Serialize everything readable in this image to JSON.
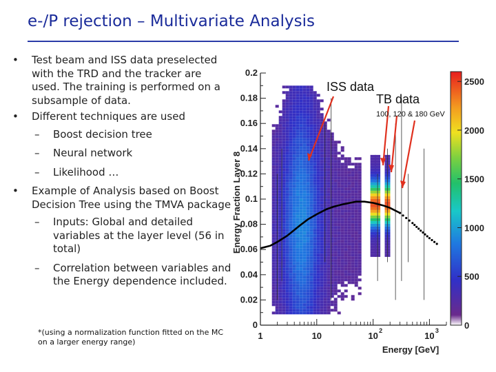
{
  "slide": {
    "title": "e-/P rejection – Multivariate Analysis",
    "bullets": [
      {
        "text": "Test beam and ISS data preselected with the TRD and the tracker are used. The training is performed on a subsample of data."
      },
      {
        "text": "Different techniques are used",
        "sub": [
          "Boost decision tree",
          "Neural network",
          "Likelihood …"
        ]
      },
      {
        "text": "Example of Analysis based on Boost Decision Tree using the TMVA package",
        "sub": [
          "Inputs: Global and detailed variables at the layer level  (56 in total)",
          " Correlation between variables and the Energy dependence included."
        ]
      }
    ],
    "footnote": "*(using a normalization function fitted on the MC on a larger energy range)"
  },
  "chart_data": {
    "type": "heatmap",
    "xlabel": "Energy [GeV]",
    "ylabel": "Energy Fraction Layer 8",
    "x_scale": "log",
    "xlim": [
      1,
      2000
    ],
    "ylim": [
      0,
      0.2
    ],
    "x_ticks": [
      {
        "label": "1",
        "value": 1
      },
      {
        "label": "10",
        "value": 10
      },
      {
        "label": "10",
        "sup": "2",
        "value": 100
      },
      {
        "label": "10",
        "sup": "3",
        "value": 1000
      }
    ],
    "y_ticks": [
      "0",
      "0.02",
      "0.04",
      "0.06",
      "0.08",
      "0.1",
      "0.12",
      "0.14",
      "0.16",
      "0.18",
      "0.2"
    ],
    "colorbar": {
      "min": 0,
      "max": 2600,
      "ticks": [
        "500",
        "1000",
        "1500",
        "2000",
        "2500"
      ],
      "tick_values": [
        500,
        1000,
        1500,
        2000,
        2500
      ]
    },
    "annotations": [
      {
        "text": "ISS data",
        "color": "#111111"
      },
      {
        "text": "TB data",
        "color": "#111111"
      },
      {
        "text": "100, 120 & 180 GeV",
        "color": "#111111"
      }
    ],
    "fit_curve": {
      "x": [
        1,
        1.5,
        2,
        3,
        5,
        7,
        10,
        15,
        20,
        30,
        50,
        70,
        100,
        150,
        200,
        300,
        400,
        500,
        700,
        1000,
        1500
      ],
      "y": [
        0.061,
        0.063,
        0.066,
        0.071,
        0.079,
        0.084,
        0.088,
        0.092,
        0.094,
        0.096,
        0.098,
        0.098,
        0.097,
        0.095,
        0.093,
        0.089,
        0.085,
        0.081,
        0.075,
        0.069,
        0.063
      ]
    },
    "tb_beams": [
      100,
      120,
      180
    ],
    "iss_density_peak": {
      "x": 5,
      "y": 0.082
    },
    "colors": {
      "arrow": "#e0301e",
      "axis": "#222222"
    }
  }
}
